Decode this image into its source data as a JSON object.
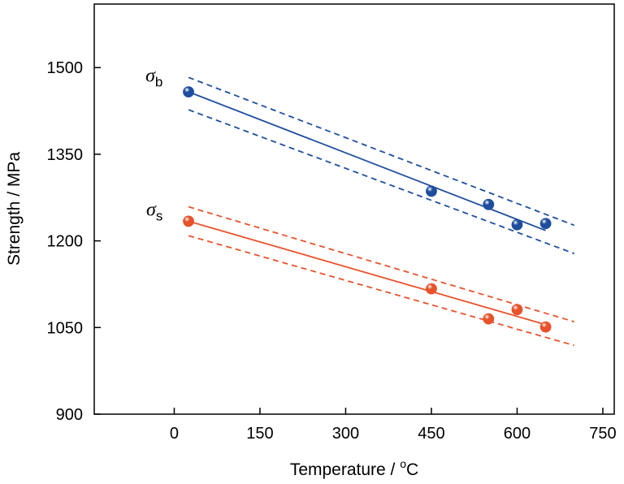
{
  "chart_data": {
    "type": "scatter",
    "title": "",
    "xlabel": "Temperature / ",
    "xlabel_unit_sup": "o",
    "xlabel_unit": "C",
    "ylabel": "Strength / MPa",
    "xlim": [
      -140,
      770
    ],
    "ylim": [
      900,
      1610
    ],
    "xticks": [
      0,
      150,
      300,
      450,
      600,
      750
    ],
    "yticks": [
      900,
      1050,
      1200,
      1350,
      1500
    ],
    "grid": false,
    "series": [
      {
        "name": "σ",
        "name_sub": "b",
        "color": "#1f4e9f",
        "label_at": [
          -20,
          1476
        ],
        "points": [
          [
            25,
            1458
          ],
          [
            450,
            1286
          ],
          [
            550,
            1263
          ],
          [
            600,
            1228
          ],
          [
            650,
            1230
          ]
        ],
        "fit": {
          "x": [
            25,
            650
          ],
          "y": [
            1458,
            1218
          ]
        },
        "bounds": [
          {
            "x": [
              25,
              700
            ],
            "y": [
              1483,
              1227
            ]
          },
          {
            "x": [
              25,
              700
            ],
            "y": [
              1427,
              1178
            ]
          }
        ]
      },
      {
        "name": "σ",
        "name_sub": "s",
        "color": "#e8522b",
        "label_at": [
          -20,
          1244
        ],
        "points": [
          [
            25,
            1234
          ],
          [
            450,
            1117
          ],
          [
            550,
            1065
          ],
          [
            600,
            1081
          ],
          [
            650,
            1051
          ]
        ],
        "fit": {
          "x": [
            25,
            650
          ],
          "y": [
            1234,
            1055
          ]
        },
        "bounds": [
          {
            "x": [
              25,
              700
            ],
            "y": [
              1259,
              1060
            ]
          },
          {
            "x": [
              25,
              700
            ],
            "y": [
              1209,
              1019
            ]
          }
        ]
      }
    ]
  }
}
